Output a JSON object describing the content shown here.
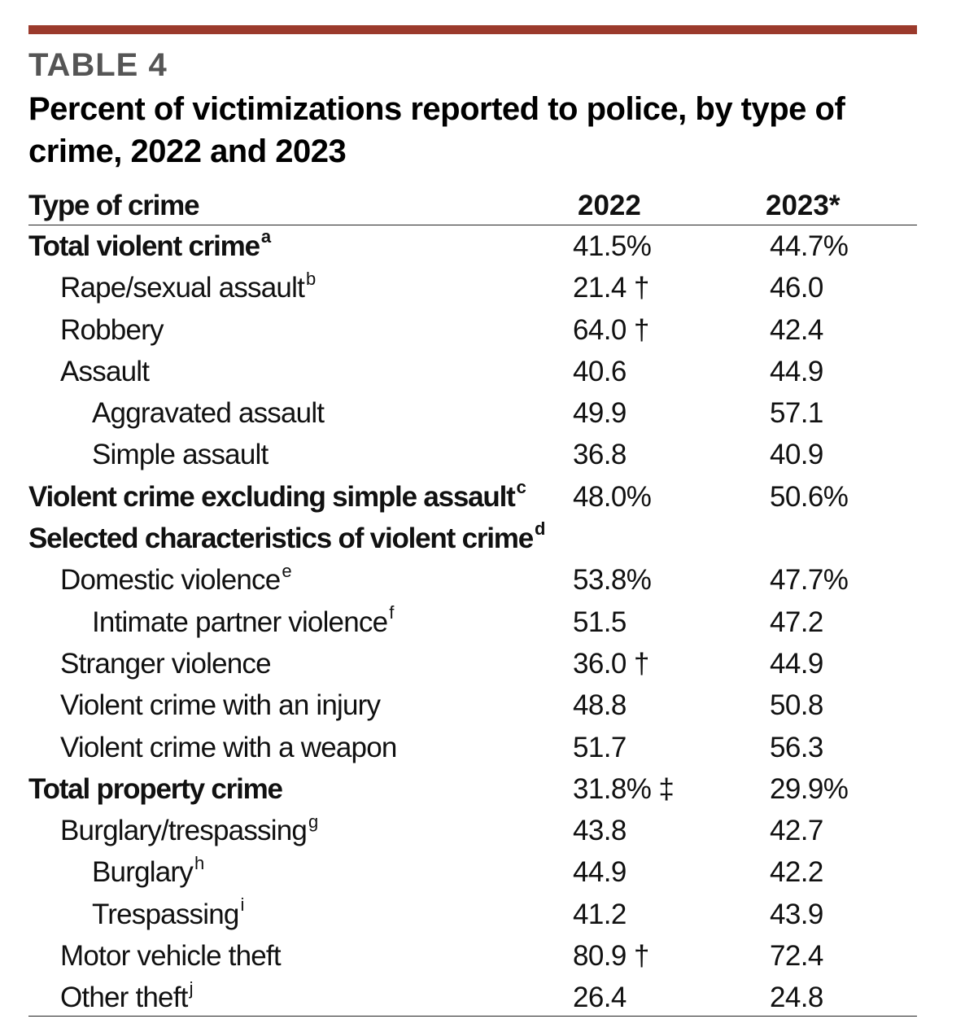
{
  "table_label": "TABLE 4",
  "title": "Percent of victimizations reported to police, by type of crime, 2022 and 2023",
  "columns": {
    "type": "Type of crime",
    "y2022": "2022",
    "y2023": "2023*"
  },
  "rows": [
    {
      "name": "Total violent crime",
      "note": "a",
      "v2022": "41.5%",
      "v2023": "44.7%"
    },
    {
      "name": "Rape/sexual assault",
      "note": "b",
      "v2022": "21.4 †",
      "v2023": "46.0"
    },
    {
      "name": "Robbery",
      "note": "",
      "v2022": "64.0 †",
      "v2023": "42.4"
    },
    {
      "name": "Assault",
      "note": "",
      "v2022": "40.6",
      "v2023": "44.9"
    },
    {
      "name": "Aggravated assault",
      "note": "",
      "v2022": "49.9",
      "v2023": "57.1"
    },
    {
      "name": "Simple assault",
      "note": "",
      "v2022": "36.8",
      "v2023": "40.9"
    },
    {
      "name": "Violent crime excluding simple assault",
      "note": "c",
      "v2022": "48.0%",
      "v2023": "50.6%"
    },
    {
      "name": "Selected characteristics of violent crime",
      "note": "d",
      "v2022": "",
      "v2023": ""
    },
    {
      "name": "Domestic violence",
      "note": "e",
      "v2022": "53.8%",
      "v2023": "47.7%"
    },
    {
      "name": "Intimate partner violence",
      "note": "f",
      "v2022": "51.5",
      "v2023": "47.2"
    },
    {
      "name": "Stranger violence",
      "note": "",
      "v2022": "36.0 †",
      "v2023": "44.9"
    },
    {
      "name": "Violent crime with an injury",
      "note": "",
      "v2022": "48.8",
      "v2023": "50.8"
    },
    {
      "name": "Violent crime with a weapon",
      "note": "",
      "v2022": "51.7",
      "v2023": "56.3"
    },
    {
      "name": "Total property crime",
      "note": "",
      "v2022": "31.8% ‡",
      "v2023": "29.9%"
    },
    {
      "name": "Burglary/trespassing",
      "note": "g",
      "v2022": "43.8",
      "v2023": "42.7"
    },
    {
      "name": "Burglary",
      "note": "h",
      "v2022": "44.9",
      "v2023": "42.2"
    },
    {
      "name": "Trespassing",
      "note": "i",
      "v2022": "41.2",
      "v2023": "43.9"
    },
    {
      "name": "Motor vehicle theft",
      "note": "",
      "v2022": "80.9 †",
      "v2023": "72.4"
    },
    {
      "name": "Other theft",
      "note": "j",
      "v2022": "26.4",
      "v2023": "24.8"
    }
  ]
}
